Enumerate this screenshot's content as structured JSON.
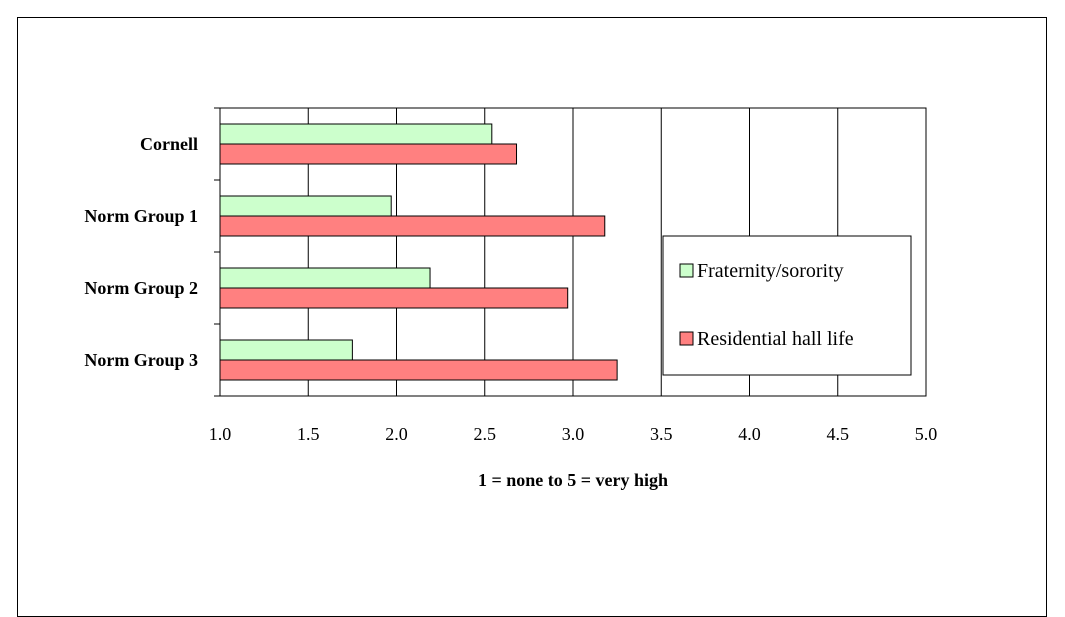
{
  "chart_data": {
    "type": "bar",
    "orientation": "horizontal",
    "categories": [
      "Cornell",
      "Norm Group 1",
      "Norm Group 2",
      "Norm Group 3"
    ],
    "series": [
      {
        "name": "Fraternity/sorority",
        "values": [
          2.54,
          1.97,
          2.19,
          1.75
        ],
        "color": "#ccffcc"
      },
      {
        "name": "Residential hall life",
        "values": [
          2.68,
          3.18,
          2.97,
          3.25
        ],
        "color": "#ff8080"
      }
    ],
    "xlabel": "1 = none  to  5 = very high",
    "xlim": [
      1.0,
      5.0
    ],
    "xticks": [
      "1.0",
      "1.5",
      "2.0",
      "2.5",
      "3.0",
      "3.5",
      "4.0",
      "4.5",
      "5.0"
    ],
    "grid": true,
    "legend_position": "right"
  }
}
